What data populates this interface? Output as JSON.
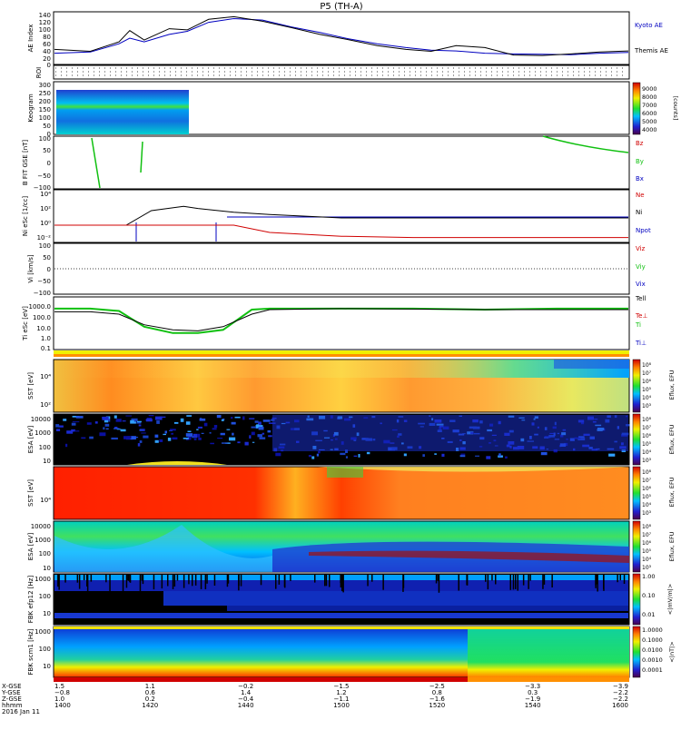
{
  "title": "P5 (TH-A)",
  "colors": {
    "kyoto": "#0000c0",
    "themis": "#000000",
    "bz": "#d00000",
    "by": "#10c010",
    "bx": "#0000c0",
    "ne": "#d00000",
    "ni": "#000000",
    "npot": "#0000c0"
  },
  "panels": {
    "ae": {
      "ylabel": "AE Index",
      "ticks": [
        "140",
        "120",
        "100",
        "80",
        "60",
        "40",
        "20",
        "0"
      ],
      "legend": [
        "Kyoto AE",
        "Themis AE"
      ]
    },
    "roi": {
      "ylabel": "ROI"
    },
    "keogram": {
      "ylabel": "Keogram",
      "ticks": [
        "300",
        "250",
        "200",
        "150",
        "100",
        "50",
        "0"
      ],
      "cbar_ticks": [
        "9000",
        "8000",
        "7000",
        "6000",
        "5000",
        "4000"
      ],
      "cbar_label": "[counts]"
    },
    "bfit": {
      "ylabel": "B FIT GSE [nT]",
      "ticks": [
        "100",
        "50",
        "0",
        "−50",
        "−100"
      ],
      "legend": [
        "Bz",
        "By",
        "Bx"
      ]
    },
    "ni": {
      "ylabel": "Ni eSc [1/cc]",
      "ticks": [
        "10⁴",
        "10²",
        "10⁰",
        "10⁻²"
      ],
      "legend": [
        "Ne",
        "Ni",
        "Npot"
      ]
    },
    "vi": {
      "ylabel": "Vi [km/s]",
      "ticks": [
        "100",
        "50",
        "0",
        "−50",
        "−100"
      ],
      "legend": [
        "Viz",
        "Viy",
        "Vix"
      ]
    },
    "ti": {
      "ylabel": "Ti eSc [eV]",
      "ticks": [
        "1000.0",
        "100.0",
        "10.0",
        "1.0",
        "0.1"
      ],
      "legend": [
        "Tell",
        "Te⊥",
        "Ti",
        "Ti⊥"
      ]
    },
    "sst_e": {
      "ylabel": "SST [eV]",
      "ticks": [
        "10⁴",
        "10²"
      ]
    },
    "esa_e": {
      "ylabel": "ESA [eV]",
      "ticks": [
        "10000",
        "1000",
        "100",
        "10"
      ]
    },
    "sst_i": {
      "ylabel": "SST [eV]",
      "ticks": [
        "10⁴"
      ]
    },
    "esa_i": {
      "ylabel": "ESA [eV]",
      "ticks": [
        "10000",
        "1000",
        "100",
        "10"
      ]
    },
    "fbk_e": {
      "ylabel": "FBK efp12 [Hz]",
      "ticks": [
        "1000",
        "100",
        "10"
      ],
      "cbar_ticks": [
        "1.00",
        "0.10",
        "0.01"
      ],
      "cbar_label": "<|mV/m|>"
    },
    "fbk_b": {
      "ylabel": "FBK scm1 [Hz]",
      "ticks": [
        "1000",
        "100",
        "10"
      ],
      "cbar_ticks": [
        "1.0000",
        "0.1000",
        "0.0100",
        "0.0010",
        "0.0001"
      ],
      "cbar_label": "<|nT|>"
    }
  },
  "eflux_cbar": {
    "label": "Eflux, EFU",
    "ticks": [
      "10⁸",
      "10⁷",
      "10⁶",
      "10⁵",
      "10⁴",
      "10³"
    ]
  },
  "time_axis": {
    "row_labels": [
      "X-GSE",
      "Y-GSE",
      "Z-GSE",
      "hhmm",
      "2016 Jan 11"
    ],
    "columns": [
      {
        "x": "1.5",
        "y": "−0.8",
        "z": "1.0",
        "t": "1400"
      },
      {
        "x": "1.1",
        "y": "0.6",
        "z": "0.2",
        "t": "1420"
      },
      {
        "x": "−0.2",
        "y": "1.4",
        "z": "−0.4",
        "t": "1440"
      },
      {
        "x": "−1.5",
        "y": "1.2",
        "z": "−1.1",
        "t": "1500"
      },
      {
        "x": "−2.5",
        "y": "0.8",
        "z": "−1.6",
        "t": "1520"
      },
      {
        "x": "−3.3",
        "y": "0.3",
        "z": "−1.9",
        "t": "1540"
      },
      {
        "x": "−3.9",
        "y": "−2.2",
        "z": "−2.2",
        "t": "1600"
      }
    ]
  },
  "chart_data": [
    {
      "type": "line",
      "title": "P5 (TH-A)",
      "ylabel": "AE Index",
      "ylim": [
        0,
        140
      ],
      "x": [
        1400,
        1410,
        1418,
        1421,
        1425,
        1432,
        1437,
        1443,
        1450,
        1458,
        1466,
        1474,
        1482,
        1490,
        1498,
        1505,
        1512,
        1520,
        1528,
        1536,
        1544,
        1552,
        1560
      ],
      "series": [
        {
          "name": "Kyoto AE",
          "values": [
            30,
            33,
            55,
            70,
            60,
            80,
            88,
            112,
            122,
            118,
            100,
            85,
            68,
            55,
            45,
            38,
            36,
            30,
            28,
            27,
            26,
            30,
            32
          ]
        },
        {
          "name": "Themis AE",
          "values": [
            40,
            35,
            60,
            90,
            65,
            95,
            92,
            120,
            127,
            115,
            98,
            80,
            66,
            50,
            40,
            35,
            50,
            45,
            25,
            24,
            28,
            33,
            36
          ]
        }
      ]
    },
    {
      "type": "line",
      "ylabel": "Ni eSc [1/cc]",
      "x": [
        1400,
        1410,
        1420,
        1427,
        1436,
        1440,
        1450,
        1460,
        1480,
        1500,
        1520,
        1540,
        1560
      ],
      "series": [
        {
          "name": "Ni",
          "values": [
            1,
            1,
            1,
            100,
            400,
            200,
            60,
            30,
            10,
            10,
            10,
            10,
            10
          ]
        },
        {
          "name": "Ne",
          "values": [
            1,
            1,
            1,
            1,
            1,
            1,
            1,
            0.1,
            0.03,
            0.02,
            0.02,
            0.02,
            0.02
          ]
        }
      ]
    },
    {
      "type": "line",
      "ylabel": "Ti eSc [eV]",
      "x": [
        1400,
        1410,
        1418,
        1425,
        1433,
        1440,
        1447,
        1455,
        1460,
        1480,
        1500,
        1520,
        1540,
        1560
      ],
      "series": [
        {
          "name": "Ti",
          "values": [
            1000,
            1000,
            600,
            20,
            5,
            5,
            10,
            800,
            1000,
            1000,
            1000,
            800,
            1000,
            1000
          ]
        },
        {
          "name": "Tell",
          "values": [
            500,
            500,
            300,
            30,
            10,
            8,
            20,
            300,
            800,
            1000,
            900,
            800,
            800,
            800
          ]
        }
      ]
    }
  ]
}
